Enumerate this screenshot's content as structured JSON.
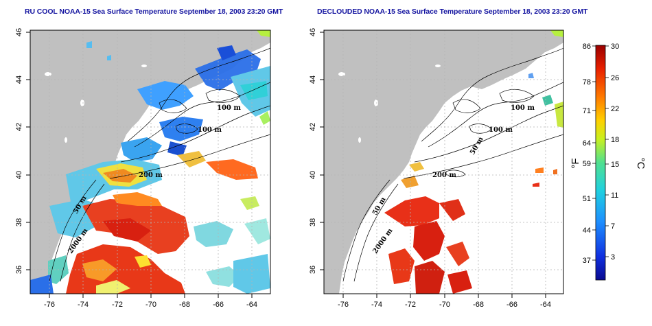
{
  "panels": [
    {
      "title": "RU COOL NOAA-15 Sea Surface Temperature September 18, 2003 23:20 GMT",
      "contour_labels": [
        "100 m",
        "100 m",
        "200 m",
        "50 m",
        "2000 m"
      ]
    },
    {
      "title": "DECLOUDED NOAA-15 Sea Surface Temperature September 18, 2003 23:20 GMT",
      "contour_labels": [
        "100 m",
        "100 m",
        "50 m",
        "200 m",
        "50 m",
        "2000 m"
      ]
    }
  ],
  "axes": {
    "lat_ticks": [
      "46",
      "44",
      "42",
      "40",
      "38",
      "36"
    ],
    "lon_ticks": [
      "-76",
      "-74",
      "-72",
      "-70",
      "-68",
      "-66",
      "-64"
    ]
  },
  "colorbar": {
    "fahrenheit_ticks": [
      "86",
      "78",
      "71",
      "64",
      "59",
      "51",
      "44",
      "37"
    ],
    "celsius_ticks": [
      "30",
      "26",
      "22",
      "18",
      "15",
      "11",
      "7",
      "3"
    ],
    "unit_f": "°F",
    "unit_c": "°C"
  },
  "colors": {
    "land": "#c0c0c0",
    "ocean_cloud": "#ffffff",
    "title": "#1414a0",
    "grid": "#b4b4b4"
  }
}
